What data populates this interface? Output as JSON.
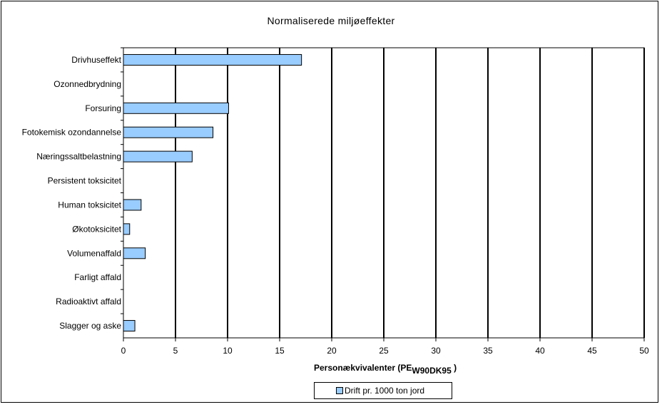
{
  "chart_data": {
    "type": "bar",
    "orientation": "horizontal",
    "title": "Normaliserede miljøeffekter",
    "xlabel": "Personækvivalenter (PE",
    "xlabel_subscript": "W90DK95",
    "xlabel_suffix": " )",
    "ylabel": "",
    "xlim": [
      0,
      50
    ],
    "xticks": [
      0,
      5,
      10,
      15,
      20,
      25,
      30,
      35,
      40,
      45,
      50
    ],
    "grid": "vertical",
    "legend_position": "bottom-center",
    "categories": [
      "Drivhuseffekt",
      "Ozonnedbrydning",
      "Forsuring",
      "Fotokemisk ozondannelse",
      "Næringssaltbelastning",
      "Persistent toksicitet",
      "Human toksicitet",
      "Økotoksicitet",
      "Volumenaffald",
      "Farligt affald",
      "Radioaktivt affald",
      "Slagger og aske"
    ],
    "series": [
      {
        "name": "Drift pr. 1000 ton jord",
        "color": "#99ccff",
        "values": [
          17.1,
          0,
          10.1,
          8.6,
          6.6,
          0,
          1.7,
          0.6,
          2.1,
          0,
          0,
          1.1
        ]
      }
    ]
  }
}
